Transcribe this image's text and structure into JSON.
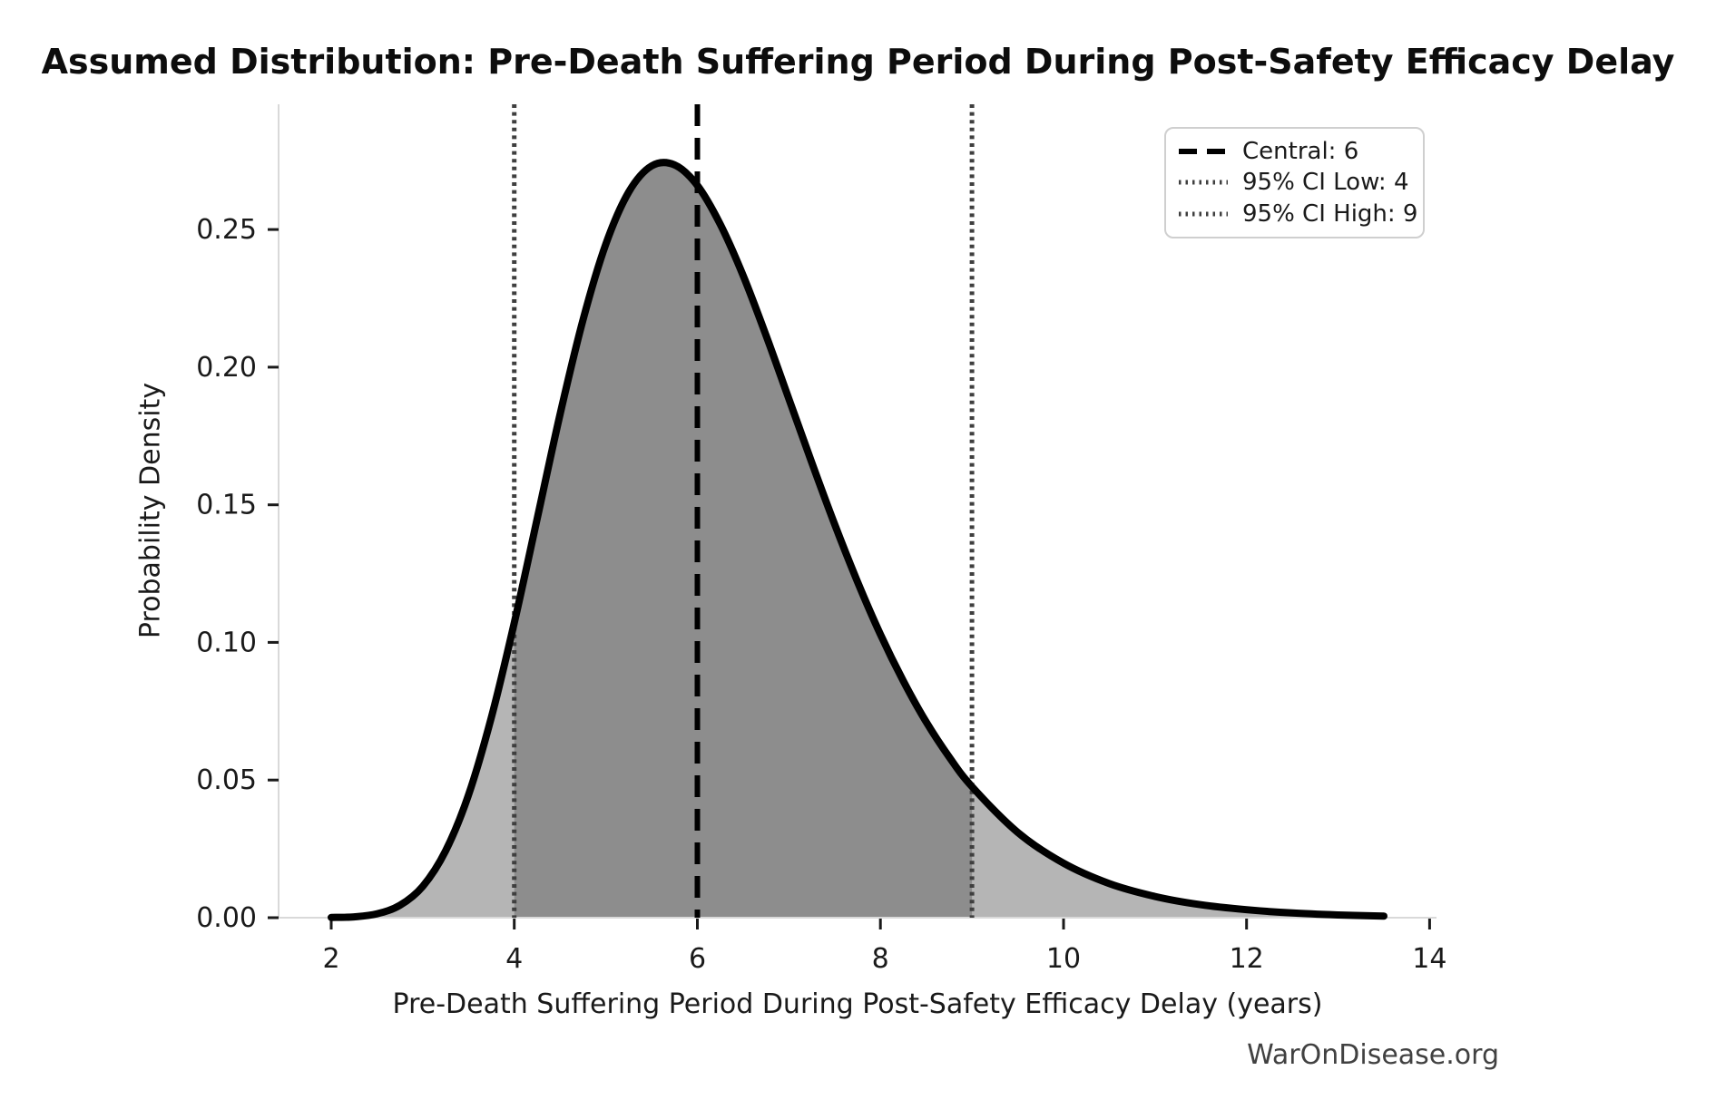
{
  "figure": {
    "watermark": "WarOnDisease.org"
  },
  "chart_data": {
    "type": "area",
    "title": "Assumed Distribution: Pre-Death Suffering Period During Post-Safety Efficacy Delay",
    "xlabel": "Pre-Death Suffering Period During Post-Safety Efficacy Delay (years)",
    "ylabel": "Probability Density",
    "xlim": [
      1.425,
      14.075
    ],
    "ylim": [
      0,
      0.2955
    ],
    "xticks": [
      2,
      4,
      6,
      8,
      10,
      12,
      14
    ],
    "yticks": [
      0,
      0.05,
      0.1,
      0.15,
      0.2,
      0.25
    ],
    "ytick_labels": [
      "0.00",
      "0.05",
      "0.10",
      "0.15",
      "0.20",
      "0.25"
    ],
    "grid": false,
    "legend_position": "upper right",
    "central": 6,
    "ci_interval": [
      4,
      9
    ],
    "annotations": {
      "central": {
        "value": 6,
        "label": "Central: 6",
        "line_style": "dashed",
        "color": "#000000"
      },
      "ci_low": {
        "value": 4,
        "label": "95% CI Low: 4",
        "line_style": "dotted",
        "color": "#3f3f3f"
      },
      "ci_high": {
        "value": 9,
        "label": "95% CI High: 9",
        "line_style": "dotted",
        "color": "#3f3f3f"
      }
    },
    "colors": {
      "curve": "#000000",
      "fill": "#b5b5b5",
      "fill_ci": "#8d8d8d",
      "spine": "#d9d9d9",
      "tick": "#1a1a1a",
      "ci_line": "#3f3f3f",
      "central_line": "#000000"
    },
    "curve": {
      "x": [
        2.0,
        2.25,
        2.5,
        2.75,
        3.0,
        3.25,
        3.5,
        3.75,
        4.0,
        4.25,
        4.5,
        4.75,
        5.0,
        5.25,
        5.5,
        5.75,
        6.0,
        6.25,
        6.5,
        6.75,
        7.0,
        7.25,
        7.5,
        7.75,
        8.0,
        8.25,
        8.5,
        8.75,
        9.0,
        9.5,
        10.0,
        10.5,
        11.0,
        11.5,
        12.0,
        12.5,
        13.0,
        13.5
      ],
      "density": [
        0.0001,
        0.0003,
        0.0014,
        0.0045,
        0.0114,
        0.0243,
        0.0446,
        0.0728,
        0.1071,
        0.145,
        0.1829,
        0.2171,
        0.2447,
        0.2636,
        0.2731,
        0.2735,
        0.266,
        0.2519,
        0.2333,
        0.2116,
        0.1885,
        0.1653,
        0.1429,
        0.122,
        0.1029,
        0.086,
        0.0711,
        0.0584,
        0.0476,
        0.031,
        0.0198,
        0.0124,
        0.0077,
        0.0047,
        0.0029,
        0.0017,
        0.001,
        0.0006
      ]
    }
  }
}
